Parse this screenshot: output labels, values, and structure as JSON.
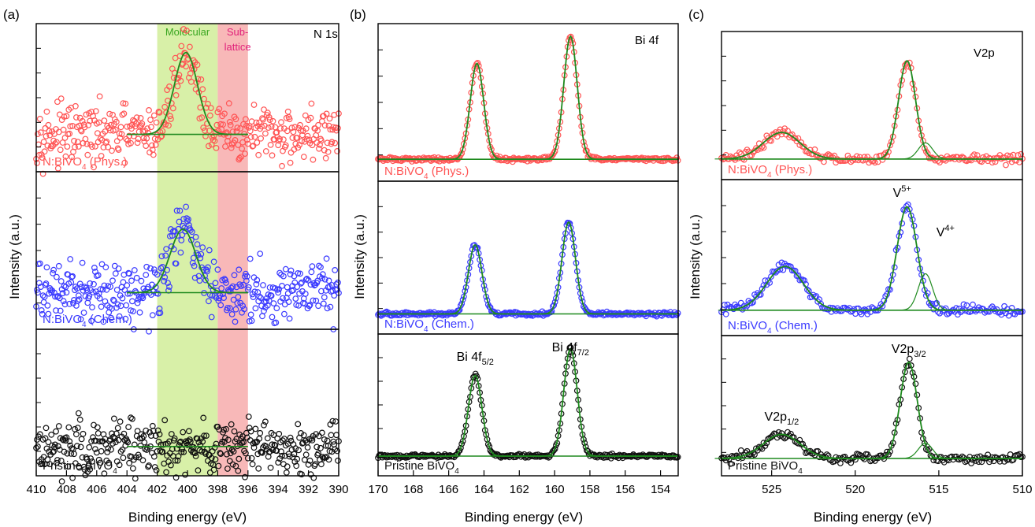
{
  "figure": {
    "panels": [
      {
        "letter": "(a)",
        "corner_label": "N 1s",
        "xlabel": "Binding energy (eV)",
        "ylabel": "Intensity (a.u.)",
        "xlim": [
          410,
          390
        ],
        "xticks": [
          "410",
          "408",
          "406",
          "404",
          "402",
          "400",
          "398",
          "396",
          "394",
          "392",
          "390"
        ],
        "bands": [
          {
            "label": "Molecular",
            "from": 402,
            "to": 398,
            "color": "#d8f0a8",
            "text_color": "#39a620"
          },
          {
            "label_lines": [
              "Sub-",
              "lattice"
            ],
            "from": 398,
            "to": 396,
            "color": "#f8b8b8",
            "text_color": "#e0207a"
          }
        ],
        "rows": [
          {
            "name_parts": [
              "N:BiVO",
              "4",
              " (Phys.)"
            ],
            "color": "#ff5555"
          },
          {
            "name_parts": [
              "N:BiVO",
              "4",
              " (Chem.)"
            ],
            "color": "#3a3aff"
          },
          {
            "name_parts": [
              "Pristine BiVO",
              "4",
              ""
            ],
            "color": "#111111"
          }
        ]
      },
      {
        "letter": "(b)",
        "corner_label": "Bi 4f",
        "xlabel": "Binding energy (eV)",
        "ylabel": "Intensity (a.u.)",
        "xlim": [
          170,
          153
        ],
        "xticks": [
          "170",
          "168",
          "166",
          "164",
          "162",
          "160",
          "158",
          "156",
          "154"
        ],
        "peak_labels": [
          {
            "main": "Bi 4f",
            "sub": "5/2"
          },
          {
            "main": "Bi 4f",
            "sub": "7/2"
          }
        ],
        "rows": [
          {
            "name_parts": [
              "N:BiVO",
              "4",
              " (Phys.)"
            ],
            "color": "#ff5555"
          },
          {
            "name_parts": [
              "N:BiVO",
              "4",
              " (Chem.)"
            ],
            "color": "#3a3aff"
          },
          {
            "name_parts": [
              "Pristine BiVO",
              "4",
              ""
            ],
            "color": "#111111"
          }
        ]
      },
      {
        "letter": "(c)",
        "corner_label": "V2p",
        "xlabel": "Binding energy (eV)",
        "ylabel": "Intensity (a.u.)",
        "xlim": [
          528,
          510
        ],
        "xticks": [
          "525",
          "520",
          "515",
          "510"
        ],
        "peak_labels": [
          {
            "main": "V2p",
            "sub": "1/2"
          },
          {
            "main": "V2p",
            "sub": "3/2"
          }
        ],
        "valence_labels": [
          {
            "main": "V",
            "sup": "5+"
          },
          {
            "main": "V",
            "sup": "4+"
          }
        ],
        "rows": [
          {
            "name_parts": [
              "N:BiVO",
              "4",
              " (Phys.)"
            ],
            "color": "#ff5555"
          },
          {
            "name_parts": [
              "N:BiVO",
              "4",
              " (Chem.)"
            ],
            "color": "#3a3aff"
          },
          {
            "name_parts": [
              "Pristine BiVO",
              "4",
              ""
            ],
            "color": "#111111"
          }
        ]
      }
    ],
    "colors": {
      "fit": "#1e8a1e",
      "axis": "#000000"
    }
  },
  "chart_data": [
    {
      "type": "scatter",
      "title": "N 1s",
      "xlabel": "Binding energy (eV)",
      "ylabel": "Intensity (a.u.)",
      "xlim": [
        410,
        390
      ],
      "grid": false,
      "series": [
        {
          "name": "N:BiVO4 (Phys.)",
          "color": "#ff5555",
          "peaks": [
            {
              "center": 400.1,
              "height": 0.85,
              "fwhm": 1.8
            }
          ],
          "baseline": 0.08,
          "fit_range": [
            404,
            396
          ]
        },
        {
          "name": "N:BiVO4 (Chem.)",
          "color": "#3a3aff",
          "peaks": [
            {
              "center": 400.3,
              "height": 0.62,
              "fwhm": 2.0
            }
          ],
          "baseline": 0.05,
          "fit_range": [
            404,
            396
          ]
        },
        {
          "name": "Pristine BiVO4",
          "color": "#111111",
          "peaks": [],
          "baseline": 0.0,
          "fit_range": [
            404,
            396
          ]
        }
      ]
    },
    {
      "type": "scatter",
      "title": "Bi 4f",
      "xlabel": "Binding energy (eV)",
      "ylabel": "Intensity (a.u.)",
      "xlim": [
        170,
        153
      ],
      "grid": false,
      "series": [
        {
          "name": "N:BiVO4 (Phys.)",
          "color": "#ff5555",
          "peaks": [
            {
              "center": 164.4,
              "height": 0.78,
              "fwhm": 0.9
            },
            {
              "center": 159.1,
              "height": 1.0,
              "fwhm": 0.9
            }
          ],
          "baseline": 0.05
        },
        {
          "name": "N:BiVO4 (Chem.)",
          "color": "#3a3aff",
          "peaks": [
            {
              "center": 164.5,
              "height": 0.58,
              "fwhm": 0.9
            },
            {
              "center": 159.2,
              "height": 0.77,
              "fwhm": 0.9
            }
          ],
          "baseline": 0.04
        },
        {
          "name": "Pristine BiVO4",
          "color": "#111111",
          "peaks": [
            {
              "center": 164.5,
              "height": 0.73,
              "fwhm": 0.9
            },
            {
              "center": 159.1,
              "height": 0.97,
              "fwhm": 0.9
            }
          ],
          "baseline": 0.05
        }
      ]
    },
    {
      "type": "scatter",
      "title": "V2p",
      "xlabel": "Binding energy (eV)",
      "ylabel": "Intensity (a.u.)",
      "xlim": [
        528,
        510
      ],
      "grid": false,
      "series": [
        {
          "name": "N:BiVO4 (Phys.)",
          "color": "#ff5555",
          "peaks": [
            {
              "center": 524.4,
              "height": 0.23,
              "fwhm": 2.6
            },
            {
              "center": 516.9,
              "height": 0.85,
              "fwhm": 1.2
            }
          ],
          "baseline": 0.05
        },
        {
          "name": "N:BiVO4 (Chem.)",
          "color": "#3a3aff",
          "peaks": [
            {
              "center": 524.2,
              "height": 0.36,
              "fwhm": 2.6
            },
            {
              "center": 516.9,
              "height": 0.85,
              "fwhm": 1.4
            }
          ],
          "baseline": 0.08
        },
        {
          "name": "Pristine BiVO4",
          "color": "#111111",
          "peaks": [
            {
              "center": 524.4,
              "height": 0.22,
              "fwhm": 2.6
            },
            {
              "center": 516.8,
              "height": 0.88,
              "fwhm": 1.2
            }
          ],
          "baseline": 0.03
        }
      ]
    }
  ]
}
